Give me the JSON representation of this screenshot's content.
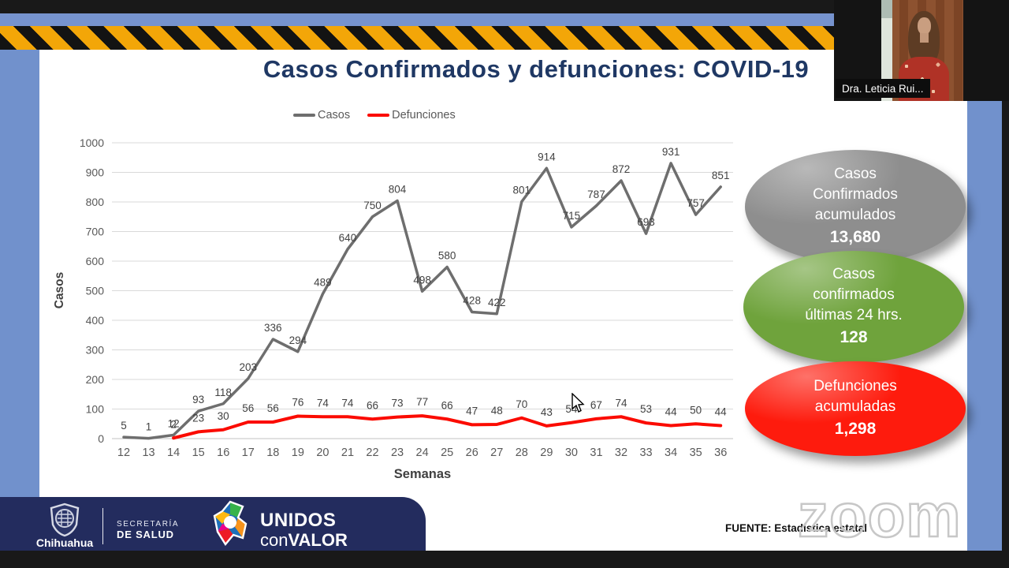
{
  "meeting": {
    "participant_name": "Dra. Leticia Rui...",
    "watermark": "zoom"
  },
  "slide": {
    "title": "Casos Confirmados y defunciones: COVID-19",
    "source": "FUENTE: Estadística estatal",
    "badges": [
      {
        "id": "casos-acumulados",
        "color": "#8e8e8e",
        "lines": [
          "Casos",
          "Confirmados",
          "acumulados"
        ],
        "value": "13,680"
      },
      {
        "id": "casos-24hrs",
        "color": "#6fa33c",
        "lines": [
          "Casos",
          "confirmados",
          "últimas 24 hrs."
        ],
        "value": "128"
      },
      {
        "id": "defunciones-acumuladas",
        "color": "#fe1b0d",
        "lines": [
          "Defunciones",
          "acumuladas"
        ],
        "value": "1,298"
      }
    ],
    "footer": {
      "state": "Chihuahua",
      "secretary_line1": "SECRETARÍA",
      "secretary_line2": "DE SALUD",
      "brand_line1": "UNIDOS",
      "brand_con": "con",
      "brand_valor": "VALOR"
    }
  },
  "chart_data": {
    "type": "line",
    "title": "",
    "xlabel": "Semanas",
    "ylabel": "Casos",
    "x": [
      12,
      13,
      14,
      15,
      16,
      17,
      18,
      19,
      20,
      21,
      22,
      23,
      24,
      25,
      26,
      27,
      28,
      29,
      30,
      31,
      32,
      33,
      34,
      35,
      36
    ],
    "series": [
      {
        "name": "Casos",
        "color": "#6e6e6e",
        "x_start": 12,
        "values": [
          5,
          1,
          12,
          93,
          118,
          203,
          336,
          294,
          489,
          640,
          750,
          804,
          498,
          580,
          428,
          422,
          801,
          914,
          715,
          787,
          872,
          693,
          931,
          757,
          851
        ]
      },
      {
        "name": "Defunciones",
        "color": "#fb0b00",
        "x_start": 14,
        "values": [
          2,
          23,
          30,
          56,
          56,
          76,
          74,
          74,
          66,
          73,
          77,
          66,
          47,
          48,
          70,
          43,
          54,
          67,
          74,
          53,
          44,
          50,
          44
        ]
      }
    ],
    "ylim": [
      0,
      1000
    ],
    "ytick_step": 100,
    "grid": true,
    "legend_position": "top"
  }
}
